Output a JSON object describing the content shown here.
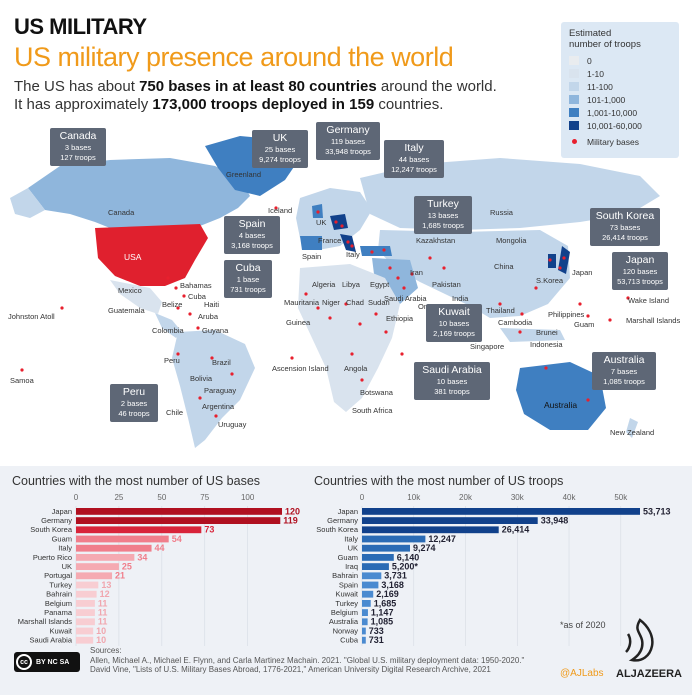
{
  "header": {
    "kicker": "US MILITARY",
    "title": "US military presence around the world",
    "line1_a": "The US has about ",
    "line1_b": "750 bases in at least 80 countries",
    "line1_c": " around the world.",
    "line2_a": "It has approximately ",
    "line2_b": "173,000 troops deployed in 159",
    "line2_c": " countries."
  },
  "legend": {
    "title_1": "Estimated",
    "title_2": "number of troops",
    "items": [
      {
        "label": "0",
        "color": "#e9ecef"
      },
      {
        "label": "1-10",
        "color": "#d9e3ee"
      },
      {
        "label": "11-100",
        "color": "#c2d6ea"
      },
      {
        "label": "101-1,000",
        "color": "#8fb6dc"
      },
      {
        "label": "1,001-10,000",
        "color": "#3f7fc1"
      },
      {
        "label": "10,001-60,000",
        "color": "#11418b"
      }
    ],
    "dot_label": "Military bases",
    "dot_color": "#e8202e"
  },
  "callouts": [
    {
      "name": "Canada",
      "bases": "3 bases",
      "troops": "127 troops"
    },
    {
      "name": "UK",
      "bases": "25 bases",
      "troops": "9,274 troops"
    },
    {
      "name": "Germany",
      "bases": "119 bases",
      "troops": "33,948 troops"
    },
    {
      "name": "Italy",
      "bases": "44 bases",
      "troops": "12,247 troops"
    },
    {
      "name": "Turkey",
      "bases": "13 bases",
      "troops": "1,685 troops"
    },
    {
      "name": "Spain",
      "bases": "4 bases",
      "troops": "3,168 troops"
    },
    {
      "name": "Cuba",
      "bases": "1 base",
      "troops": "731 troops"
    },
    {
      "name": "South Korea",
      "bases": "73 bases",
      "troops": "26,414 troops"
    },
    {
      "name": "Japan",
      "bases": "120 bases",
      "troops": "53,713 troops"
    },
    {
      "name": "Kuwait",
      "bases": "10 bases",
      "troops": "2,169 troops"
    },
    {
      "name": "Saudi Arabia",
      "bases": "10 bases",
      "troops": "381 troops"
    },
    {
      "name": "Australia",
      "bases": "7 bases",
      "troops": "1,085 troops"
    },
    {
      "name": "Peru",
      "bases": "2 bases",
      "troops": "46 troops"
    }
  ],
  "map_labels": {
    "usa": "USA",
    "canada": "Canada",
    "greenland": "Greenland",
    "iceland": "Iceland",
    "russia": "Russia",
    "china": "China",
    "kazakhstan": "Kazakhstan",
    "iran": "Iran",
    "india": "India",
    "mexico": "Mexico",
    "bahamas": "Bahamas",
    "cuba": "Cuba",
    "haiti": "Haiti",
    "belize": "Belize",
    "guatemala": "Guatemala",
    "aruba": "Aruba",
    "colombia": "Colombia",
    "guyana": "Guyana",
    "peru": "Peru",
    "brazil": "Brazil",
    "bolivia": "Bolivia",
    "paraguay": "Paraguay",
    "chile": "Chile",
    "argentina": "Argentina",
    "uruguay": "Uruguay",
    "johnston": "Johnston Atoll",
    "samoa": "Samoa",
    "algeria": "Algeria",
    "libya": "Libya",
    "egypt": "Egypt",
    "mauritania": "Mauritania",
    "niger": "Niger",
    "chad": "Chad",
    "sudan": "Sudan",
    "ethiopia": "Ethiopia",
    "guinea": "Guinea",
    "angola": "Angola",
    "botswana": "Botswana",
    "south_africa": "South Africa",
    "ascension": "Ascension Island",
    "australia": "Australia",
    "new_zealand": "New Zealand",
    "indonesia": "Indonesia",
    "brunei": "Brunei",
    "singapore": "Singapore",
    "cambodia": "Cambodia",
    "guam": "Guam",
    "marshall": "Marshall Islands",
    "wake": "Wake Island",
    "uk_label": "UK",
    "france": "France",
    "italy_label": "Italy",
    "spain_label": "Spain",
    "japan_label": "Japan",
    "korea_label": "S.Korea",
    "pakistan": "Pakistan",
    "oman": "Oman",
    "mongolia": "Mongolia",
    "philippines": "Philippines",
    "thailand": "Thailand",
    "saudi_label": "Saudi Arabia"
  },
  "chart_data": [
    {
      "type": "bar",
      "orientation": "horizontal",
      "title": "Countries with the most number of US bases",
      "xlim": [
        0,
        120
      ],
      "ticks": [
        0,
        25,
        50,
        75,
        100
      ],
      "categories": [
        "Japan",
        "Germany",
        "South Korea",
        "Guam",
        "Italy",
        "Puerto Rico",
        "UK",
        "Portugal",
        "Turkey",
        "Bahrain",
        "Belgium",
        "Panama",
        "Marshall Islands",
        "Kuwait",
        "Saudi Arabia"
      ],
      "values": [
        120,
        119,
        73,
        54,
        44,
        34,
        25,
        21,
        13,
        12,
        11,
        11,
        11,
        10,
        10
      ],
      "value_labels": [
        "120",
        "119",
        "73",
        "54",
        "44",
        "34",
        "25",
        "21",
        "13",
        "12",
        "11",
        "11",
        "11",
        "10",
        "10"
      ]
    },
    {
      "type": "bar",
      "orientation": "horizontal",
      "title": "Countries with the most number of US troops",
      "xlim": [
        0,
        53713
      ],
      "ticks": [
        0,
        10000,
        20000,
        30000,
        40000,
        50000
      ],
      "tick_labels": [
        "0",
        "10k",
        "20k",
        "30k",
        "40k",
        "50k"
      ],
      "categories": [
        "Japan",
        "Germany",
        "South Korea",
        "Italy",
        "UK",
        "Guam",
        "Iraq",
        "Bahrain",
        "Spain",
        "Kuwait",
        "Turkey",
        "Belgium",
        "Australia",
        "Norway",
        "Cuba"
      ],
      "values": [
        53713,
        33948,
        26414,
        12247,
        9274,
        6140,
        5200,
        3731,
        3168,
        2169,
        1685,
        1147,
        1085,
        733,
        731
      ],
      "value_labels": [
        "53,713",
        "33,948",
        "26,414",
        "12,247",
        "9,274",
        "6,140",
        "5,200*",
        "3,731",
        "3,168",
        "2,169",
        "1,685",
        "1,147",
        "1,085",
        "733",
        "731"
      ]
    }
  ],
  "footer": {
    "asof": "*as of 2020",
    "sources_label": "Sources:",
    "source1": "Allen, Michael A., Michael E. Flynn, and Carla Martinez Machain. 2021. \"Global U.S. military deployment data: 1950-2020.\"",
    "source2": "David Vine, \"Lists of U.S. Military Bases Abroad, 1776-2021,\" American University Digital Research Archive, 2021",
    "cc_text": "BY NC SA",
    "ajlabs": "@AJLabs",
    "aljazeera": "ALJAZEERA"
  }
}
